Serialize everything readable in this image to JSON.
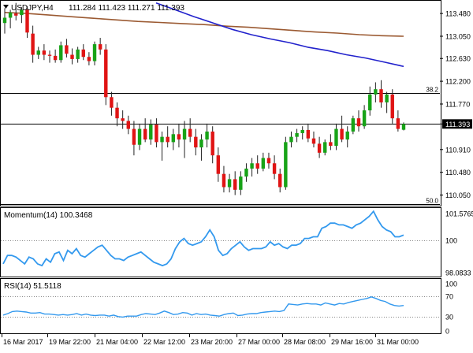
{
  "header": {
    "symbol": "USDJPY,H4",
    "ohlc": "111.284 111.423 111.271 111.393"
  },
  "colors": {
    "bull": "#17a317",
    "bear": "#e01414",
    "wick": "#222222",
    "ma_fast": "#2222cc",
    "ma_slow": "#9b5a32",
    "indicator": "#3399ee",
    "level_line": "#000000",
    "grid_dotted": "#888888"
  },
  "chart_data": [
    {
      "type": "candlestick",
      "title": "USDJPY,H4",
      "ylim": [
        109.85,
        113.72
      ],
      "y_ticks": [
        "113.480",
        "113.050",
        "112.630",
        "112.200",
        "111.770",
        "111.393",
        "110.910",
        "110.480",
        "110.050"
      ],
      "y_tick_values": [
        113.48,
        113.05,
        112.63,
        112.2,
        111.77,
        111.393,
        110.91,
        110.48,
        110.05
      ],
      "current_price": 111.393,
      "levels": [
        {
          "value": 111.975,
          "label": "38.2"
        },
        {
          "value": 111.393,
          "label": ""
        },
        {
          "value": 109.88,
          "label": "50.0"
        }
      ],
      "candles": [
        {
          "o": 113.3,
          "h": 113.58,
          "l": 113.1,
          "c": 113.4
        },
        {
          "o": 113.4,
          "h": 113.55,
          "l": 113.2,
          "c": 113.5
        },
        {
          "o": 113.48,
          "h": 113.68,
          "l": 113.35,
          "c": 113.44
        },
        {
          "o": 113.45,
          "h": 113.6,
          "l": 113.3,
          "c": 113.55
        },
        {
          "o": 113.55,
          "h": 113.62,
          "l": 113.02,
          "c": 113.12
        },
        {
          "o": 113.1,
          "h": 113.25,
          "l": 112.55,
          "c": 112.7
        },
        {
          "o": 112.7,
          "h": 112.85,
          "l": 112.62,
          "c": 112.78
        },
        {
          "o": 112.78,
          "h": 112.9,
          "l": 112.6,
          "c": 112.7
        },
        {
          "o": 112.7,
          "h": 112.78,
          "l": 112.55,
          "c": 112.68
        },
        {
          "o": 112.68,
          "h": 112.8,
          "l": 112.55,
          "c": 112.6
        },
        {
          "o": 112.6,
          "h": 112.95,
          "l": 112.55,
          "c": 112.88
        },
        {
          "o": 112.88,
          "h": 113.0,
          "l": 112.65,
          "c": 112.72
        },
        {
          "o": 112.7,
          "h": 112.82,
          "l": 112.52,
          "c": 112.62
        },
        {
          "o": 112.62,
          "h": 112.85,
          "l": 112.55,
          "c": 112.8
        },
        {
          "o": 112.8,
          "h": 112.9,
          "l": 112.6,
          "c": 112.66
        },
        {
          "o": 112.66,
          "h": 112.75,
          "l": 112.5,
          "c": 112.58
        },
        {
          "o": 112.58,
          "h": 112.95,
          "l": 112.5,
          "c": 112.9
        },
        {
          "o": 112.9,
          "h": 113.02,
          "l": 112.7,
          "c": 112.8
        },
        {
          "o": 112.8,
          "h": 112.9,
          "l": 111.75,
          "c": 111.9
        },
        {
          "o": 111.9,
          "h": 112.0,
          "l": 111.55,
          "c": 111.7
        },
        {
          "o": 111.7,
          "h": 111.8,
          "l": 111.35,
          "c": 111.5
        },
        {
          "o": 111.5,
          "h": 111.65,
          "l": 111.3,
          "c": 111.45
        },
        {
          "o": 111.45,
          "h": 111.55,
          "l": 111.2,
          "c": 111.3
        },
        {
          "o": 111.3,
          "h": 111.45,
          "l": 110.8,
          "c": 111.0
        },
        {
          "o": 111.0,
          "h": 111.4,
          "l": 110.9,
          "c": 111.3
        },
        {
          "o": 111.3,
          "h": 111.5,
          "l": 111.05,
          "c": 111.1
        },
        {
          "o": 111.1,
          "h": 111.48,
          "l": 111.0,
          "c": 111.38
        },
        {
          "o": 111.38,
          "h": 111.5,
          "l": 110.95,
          "c": 111.05
        },
        {
          "o": 111.05,
          "h": 111.25,
          "l": 110.7,
          "c": 111.15
        },
        {
          "o": 111.15,
          "h": 111.35,
          "l": 110.95,
          "c": 111.05
        },
        {
          "o": 111.05,
          "h": 111.3,
          "l": 110.9,
          "c": 111.2
        },
        {
          "o": 111.2,
          "h": 111.4,
          "l": 110.95,
          "c": 111.1
        },
        {
          "o": 111.1,
          "h": 111.45,
          "l": 110.75,
          "c": 111.3
        },
        {
          "o": 111.3,
          "h": 111.5,
          "l": 111.05,
          "c": 111.15
        },
        {
          "o": 111.15,
          "h": 111.3,
          "l": 110.8,
          "c": 110.95
        },
        {
          "o": 110.95,
          "h": 111.2,
          "l": 110.7,
          "c": 111.1
        },
        {
          "o": 111.1,
          "h": 111.4,
          "l": 110.95,
          "c": 111.25
        },
        {
          "o": 111.25,
          "h": 111.35,
          "l": 110.65,
          "c": 110.8
        },
        {
          "o": 110.8,
          "h": 110.95,
          "l": 110.3,
          "c": 110.45
        },
        {
          "o": 110.45,
          "h": 110.6,
          "l": 110.1,
          "c": 110.2
        },
        {
          "o": 110.2,
          "h": 110.45,
          "l": 110.1,
          "c": 110.35
        },
        {
          "o": 110.35,
          "h": 110.5,
          "l": 110.05,
          "c": 110.15
        },
        {
          "o": 110.15,
          "h": 110.5,
          "l": 110.05,
          "c": 110.4
        },
        {
          "o": 110.4,
          "h": 110.65,
          "l": 110.3,
          "c": 110.55
        },
        {
          "o": 110.55,
          "h": 110.75,
          "l": 110.4,
          "c": 110.65
        },
        {
          "o": 110.65,
          "h": 110.8,
          "l": 110.45,
          "c": 110.55
        },
        {
          "o": 110.55,
          "h": 110.85,
          "l": 110.5,
          "c": 110.75
        },
        {
          "o": 110.75,
          "h": 110.85,
          "l": 110.55,
          "c": 110.65
        },
        {
          "o": 110.65,
          "h": 110.8,
          "l": 110.35,
          "c": 110.45
        },
        {
          "o": 110.45,
          "h": 110.55,
          "l": 110.1,
          "c": 110.2
        },
        {
          "o": 110.2,
          "h": 111.15,
          "l": 110.15,
          "c": 111.05
        },
        {
          "o": 111.05,
          "h": 111.25,
          "l": 110.95,
          "c": 111.15
        },
        {
          "o": 111.15,
          "h": 111.3,
          "l": 111.05,
          "c": 111.22
        },
        {
          "o": 111.22,
          "h": 111.35,
          "l": 111.1,
          "c": 111.28
        },
        {
          "o": 111.28,
          "h": 111.4,
          "l": 111.05,
          "c": 111.12
        },
        {
          "o": 111.12,
          "h": 111.25,
          "l": 110.95,
          "c": 111.02
        },
        {
          "o": 111.02,
          "h": 111.15,
          "l": 110.75,
          "c": 110.85
        },
        {
          "o": 110.85,
          "h": 111.1,
          "l": 110.8,
          "c": 111.05
        },
        {
          "o": 111.05,
          "h": 111.2,
          "l": 110.9,
          "c": 110.98
        },
        {
          "o": 110.98,
          "h": 111.4,
          "l": 110.9,
          "c": 111.3
        },
        {
          "o": 111.3,
          "h": 111.55,
          "l": 111.05,
          "c": 111.1
        },
        {
          "o": 111.1,
          "h": 111.35,
          "l": 110.95,
          "c": 111.25
        },
        {
          "o": 111.25,
          "h": 111.55,
          "l": 111.2,
          "c": 111.5
        },
        {
          "o": 111.5,
          "h": 111.65,
          "l": 111.25,
          "c": 111.35
        },
        {
          "o": 111.35,
          "h": 111.75,
          "l": 111.3,
          "c": 111.65
        },
        {
          "o": 111.65,
          "h": 112.1,
          "l": 111.55,
          "c": 111.95
        },
        {
          "o": 111.95,
          "h": 112.18,
          "l": 111.8,
          "c": 112.05
        },
        {
          "o": 112.05,
          "h": 112.22,
          "l": 111.7,
          "c": 111.8
        },
        {
          "o": 111.8,
          "h": 112.0,
          "l": 111.6,
          "c": 111.95
        },
        {
          "o": 111.95,
          "h": 112.05,
          "l": 111.4,
          "c": 111.5
        },
        {
          "o": 111.5,
          "h": 111.65,
          "l": 111.25,
          "c": 111.3
        },
        {
          "o": 111.284,
          "h": 111.423,
          "l": 111.271,
          "c": 111.393
        }
      ],
      "ma_slow": [
        113.5,
        113.48,
        113.45,
        113.42,
        113.39,
        113.36,
        113.33,
        113.31,
        113.29,
        113.27,
        113.24,
        113.22,
        113.19,
        113.16,
        113.13,
        113.11,
        113.08,
        113.06,
        113.05
      ],
      "ma_fast": [
        113.68,
        113.55,
        113.42,
        113.3,
        113.18,
        113.08,
        113.0,
        112.93,
        112.84,
        112.78,
        112.7,
        112.64,
        112.56,
        112.48
      ]
    },
    {
      "type": "line",
      "title": "Momentum(14) 100.3468",
      "ylim": [
        97.9,
        101.8
      ],
      "y_ticks": [
        "101.5765",
        "100",
        "98.0833"
      ],
      "y_tick_values": [
        101.5765,
        100,
        98.0833
      ],
      "reference_value": 100,
      "values": [
        98.6,
        99.1,
        99.1,
        99.0,
        98.8,
        98.6,
        99.0,
        98.9,
        98.6,
        98.5,
        98.9,
        98.7,
        99.2,
        99.3,
        98.8,
        99.4,
        99.2,
        99.5,
        99.1,
        99.0,
        99.2,
        99.4,
        99.6,
        99.7,
        99.4,
        99.1,
        98.9,
        98.9,
        98.8,
        99.0,
        99.1,
        99.2,
        99.3,
        99.1,
        98.9,
        98.7,
        98.6,
        98.5,
        98.6,
        98.9,
        99.5,
        99.9,
        100.1,
        99.8,
        99.7,
        99.8,
        99.9,
        100.2,
        100.6,
        100.2,
        99.4,
        99.1,
        99.2,
        99.5,
        99.7,
        99.9,
        99.6,
        99.4,
        99.5,
        99.5,
        99.5,
        99.6,
        99.9,
        99.7,
        99.8,
        99.6,
        99.5,
        99.7,
        99.7,
        99.8,
        100.1,
        100.1,
        100.2,
        100.2,
        100.7,
        100.8,
        101.0,
        101.0,
        100.9,
        100.9,
        100.8,
        100.7,
        100.9,
        101.0,
        101.2,
        101.4,
        101.7,
        101.2,
        100.8,
        100.6,
        100.5,
        100.2,
        100.2,
        100.3
      ]
    },
    {
      "type": "line",
      "title": "RSI(14) 51.5118",
      "ylim": [
        0,
        100
      ],
      "y_ticks": [
        "100",
        "70",
        "30",
        "0"
      ],
      "y_tick_values": [
        100,
        70,
        30,
        0
      ],
      "dotted_levels": [
        70,
        30
      ],
      "values": [
        33,
        36,
        40,
        41,
        40,
        39,
        37,
        37,
        38,
        35,
        35,
        34,
        33,
        34,
        33,
        34,
        36,
        33,
        35,
        33,
        32,
        33,
        33,
        31,
        33,
        30,
        29,
        31,
        31,
        31,
        34,
        36,
        35,
        34,
        37,
        41,
        38,
        34,
        35,
        38,
        37,
        33,
        36,
        34,
        35,
        33,
        32,
        31,
        34,
        36,
        37,
        32,
        33,
        35,
        36,
        36,
        38,
        39,
        40,
        41,
        40,
        42,
        55,
        54,
        53,
        55,
        56,
        55,
        55,
        53,
        57,
        55,
        53,
        56,
        55,
        58,
        60,
        62,
        64,
        66,
        69,
        66,
        62,
        60,
        55,
        52,
        51,
        52
      ]
    }
  ],
  "x_axis": {
    "tick_labels": [
      "16 Mar 2017",
      "19 Mar 22:00",
      "21 Mar 04:00",
      "22 Mar 12:00",
      "23 Mar 20:00",
      "27 Mar 00:00",
      "28 Mar 08:00",
      "29 Mar 16:00",
      "31 Mar 00:00"
    ]
  }
}
